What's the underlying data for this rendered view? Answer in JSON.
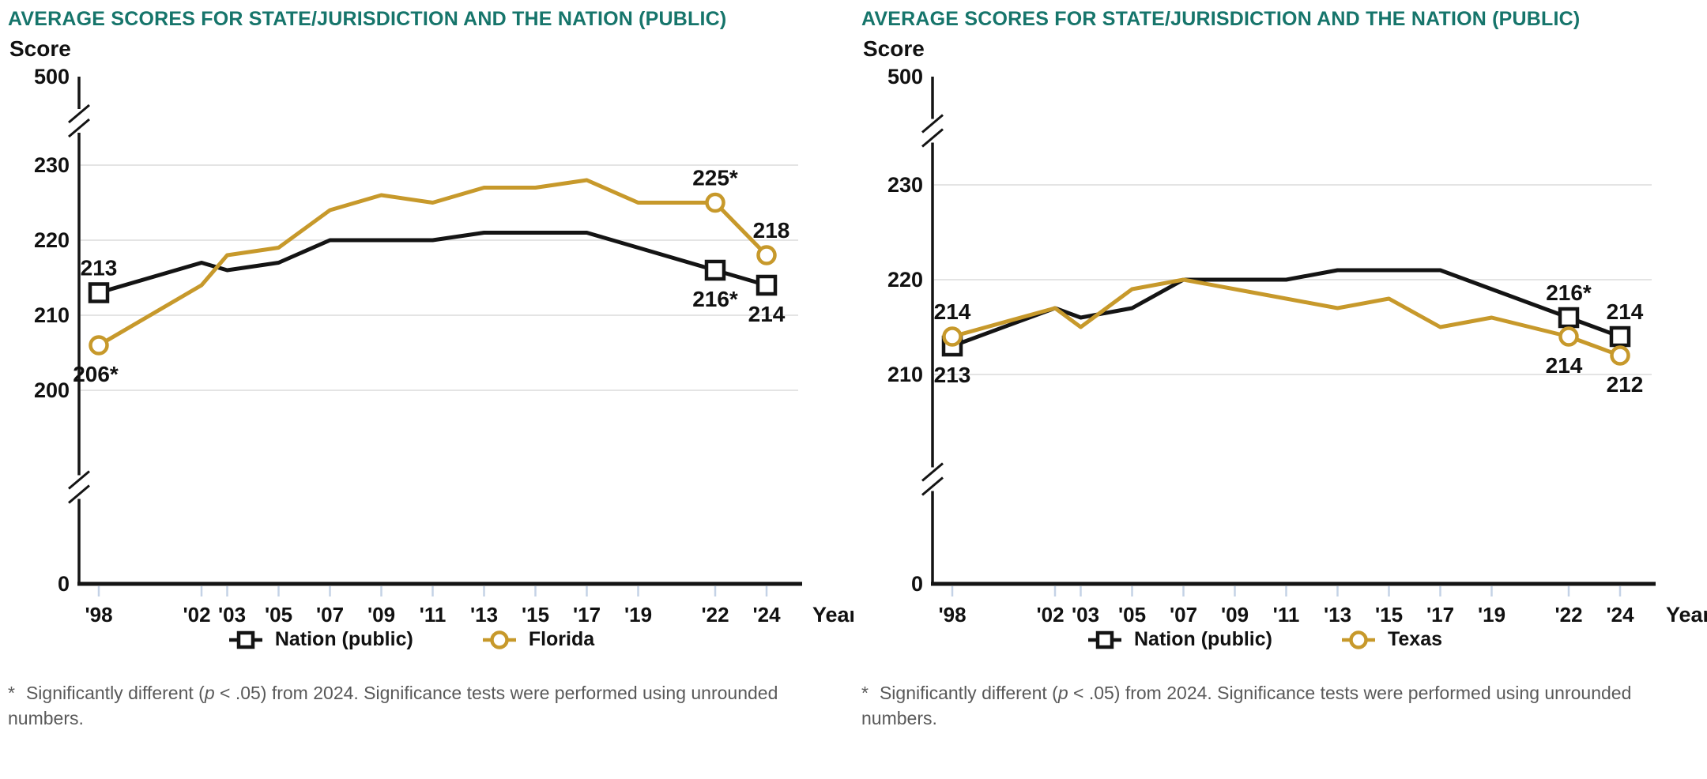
{
  "colors": {
    "nation_line": "#141414",
    "state_line": "#c7992b",
    "title_text": "#16756b",
    "grid_line": "#e4e4e4",
    "axis_tick": "#c4d2e6",
    "footnote_text": "#595959"
  },
  "chart_data": [
    {
      "type": "line",
      "title": "AVERAGE SCORES FOR STATE/JURISDICTION AND THE NATION (PUBLIC)",
      "ylabel": "Score",
      "xlabel": "Year",
      "y_axis": {
        "top_label": "500",
        "bottom_label": "0",
        "grid_ticks": [
          230,
          220,
          210,
          200
        ],
        "broken_axis": true
      },
      "x_ticks": [
        {
          "year": 1998,
          "label": "'98"
        },
        {
          "year": 2002,
          "label": "'02",
          "dx": -6
        },
        {
          "year": 2003,
          "label": "'03",
          "dx": 6
        },
        {
          "year": 2005,
          "label": "'05"
        },
        {
          "year": 2007,
          "label": "'07"
        },
        {
          "year": 2009,
          "label": "'09"
        },
        {
          "year": 2011,
          "label": "'11"
        },
        {
          "year": 2013,
          "label": "'13"
        },
        {
          "year": 2015,
          "label": "'15"
        },
        {
          "year": 2017,
          "label": "'17"
        },
        {
          "year": 2019,
          "label": "'19"
        },
        {
          "year": 2022,
          "label": "'22"
        },
        {
          "year": 2024,
          "label": "'24"
        }
      ],
      "series": [
        {
          "name": "Nation (public)",
          "name_key": "nation",
          "marker": "square",
          "color_key": "nation_line",
          "values": [
            213,
            217,
            216,
            217,
            220,
            220,
            220,
            221,
            221,
            221,
            219,
            216,
            214
          ],
          "marker_years": [
            1998,
            2022,
            2024
          ]
        },
        {
          "name": "Florida",
          "name_key": "florida",
          "marker": "circle",
          "color_key": "state_line",
          "values": [
            206,
            214,
            218,
            219,
            224,
            226,
            225,
            227,
            227,
            228,
            225,
            225,
            218
          ],
          "marker_years": [
            1998,
            2022,
            2024
          ]
        }
      ],
      "annotations": [
        {
          "series": 0,
          "year": 1998,
          "text": "213",
          "pos": "above"
        },
        {
          "series": 1,
          "year": 1998,
          "text": "206*",
          "pos": "below",
          "dx": -4
        },
        {
          "series": 1,
          "year": 2022,
          "text": "225*",
          "pos": "above"
        },
        {
          "series": 1,
          "year": 2024,
          "text": "218",
          "pos": "above",
          "dx": 6
        },
        {
          "series": 0,
          "year": 2022,
          "text": "216*",
          "pos": "below"
        },
        {
          "series": 0,
          "year": 2024,
          "text": "214",
          "pos": "below"
        }
      ],
      "legend": [
        {
          "label": "Nation (public)",
          "marker": "square"
        },
        {
          "label": "Florida",
          "marker": "circle"
        }
      ],
      "footnote": {
        "star": "*",
        "before_p": "Significantly different (",
        "p_symbol": "p",
        "after_p": " < .05) from 2024. Significance tests were performed using unrounded numbers."
      }
    },
    {
      "type": "line",
      "title": "AVERAGE SCORES FOR STATE/JURISDICTION AND THE NATION (PUBLIC)",
      "ylabel": "Score",
      "xlabel": "Year",
      "y_axis": {
        "top_label": "500",
        "bottom_label": "0",
        "grid_ticks": [
          230,
          220,
          210
        ],
        "broken_axis": true
      },
      "x_ticks": [
        {
          "year": 1998,
          "label": "'98"
        },
        {
          "year": 2002,
          "label": "'02",
          "dx": -6
        },
        {
          "year": 2003,
          "label": "'03",
          "dx": 6
        },
        {
          "year": 2005,
          "label": "'05"
        },
        {
          "year": 2007,
          "label": "'07"
        },
        {
          "year": 2009,
          "label": "'09"
        },
        {
          "year": 2011,
          "label": "'11"
        },
        {
          "year": 2013,
          "label": "'13"
        },
        {
          "year": 2015,
          "label": "'15"
        },
        {
          "year": 2017,
          "label": "'17"
        },
        {
          "year": 2019,
          "label": "'19"
        },
        {
          "year": 2022,
          "label": "'22"
        },
        {
          "year": 2024,
          "label": "'24"
        }
      ],
      "series": [
        {
          "name": "Nation (public)",
          "name_key": "nation",
          "marker": "square",
          "color_key": "nation_line",
          "values": [
            213,
            217,
            216,
            217,
            220,
            220,
            220,
            221,
            221,
            221,
            219,
            216,
            214
          ],
          "marker_years": [
            1998,
            2022,
            2024
          ]
        },
        {
          "name": "Texas",
          "name_key": "texas",
          "marker": "circle",
          "color_key": "state_line",
          "values": [
            214,
            217,
            215,
            219,
            220,
            219,
            218,
            217,
            218,
            215,
            216,
            214,
            212
          ],
          "marker_years": [
            1998,
            2022,
            2024
          ]
        }
      ],
      "annotations": [
        {
          "series": 1,
          "year": 1998,
          "text": "214",
          "pos": "above"
        },
        {
          "series": 0,
          "year": 1998,
          "text": "213",
          "pos": "below"
        },
        {
          "series": 0,
          "year": 2022,
          "text": "216*",
          "pos": "above"
        },
        {
          "series": 0,
          "year": 2024,
          "text": "214",
          "pos": "above",
          "dx": 6
        },
        {
          "series": 1,
          "year": 2022,
          "text": "214",
          "pos": "below",
          "dx": -6
        },
        {
          "series": 1,
          "year": 2024,
          "text": "212",
          "pos": "below",
          "dx": 6
        }
      ],
      "legend": [
        {
          "label": "Nation (public)",
          "marker": "square"
        },
        {
          "label": "Texas",
          "marker": "circle"
        }
      ],
      "footnote": {
        "star": "*",
        "before_p": "Significantly different (",
        "p_symbol": "p",
        "after_p": " < .05) from 2024. Significance tests were performed using unrounded numbers."
      }
    }
  ]
}
